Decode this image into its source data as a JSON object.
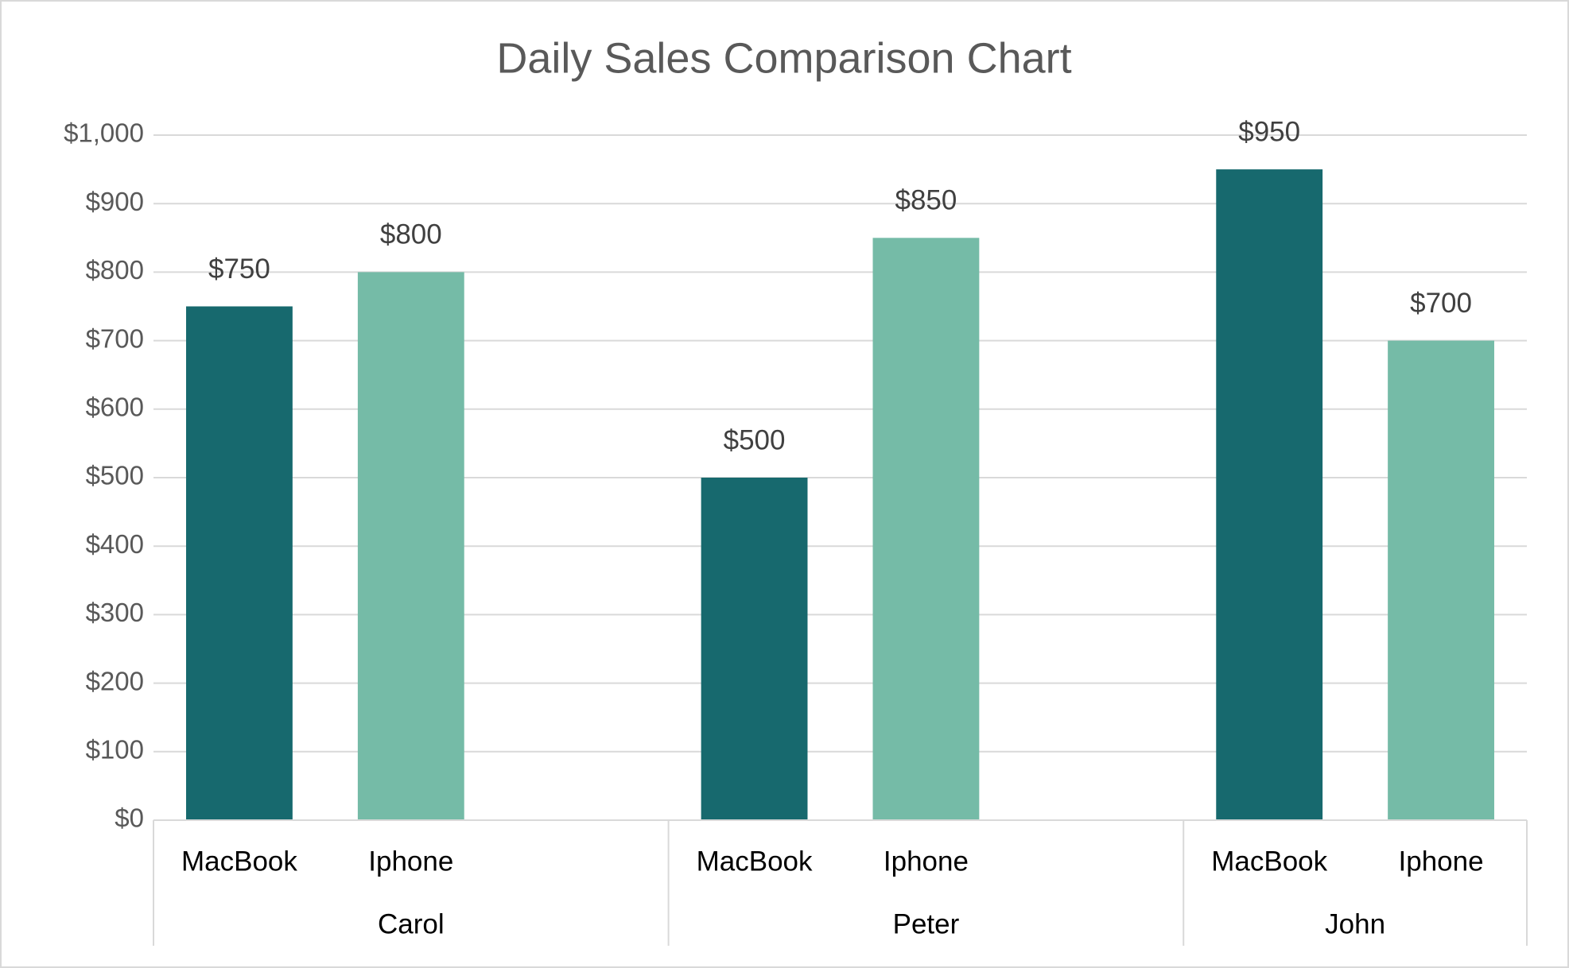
{
  "chart_data": {
    "type": "grouped-bar",
    "title": "Daily Sales Comparison Chart",
    "groups": [
      {
        "name": "Carol",
        "categories": [
          "MacBook",
          "Iphone",
          null
        ],
        "values": [
          750,
          800,
          null
        ],
        "value_labels": [
          "$750",
          "$800",
          null
        ]
      },
      {
        "name": "Peter",
        "categories": [
          "MacBook",
          "Iphone",
          null
        ],
        "values": [
          500,
          850,
          null
        ],
        "value_labels": [
          "$500",
          "$850",
          null
        ]
      },
      {
        "name": "John",
        "categories": [
          "MacBook",
          "Iphone"
        ],
        "values": [
          950,
          700
        ],
        "value_labels": [
          "$950",
          "$700"
        ]
      }
    ],
    "colors": [
      "#17696e",
      "#75bba7"
    ],
    "ylim": [
      0,
      1000
    ],
    "yticks": [
      {
        "value": 0,
        "label": "$0"
      },
      {
        "value": 100,
        "label": "$100"
      },
      {
        "value": 200,
        "label": "$200"
      },
      {
        "value": 300,
        "label": "$300"
      },
      {
        "value": 400,
        "label": "$400"
      },
      {
        "value": 500,
        "label": "$500"
      },
      {
        "value": 600,
        "label": "$600"
      },
      {
        "value": 700,
        "label": "$700"
      },
      {
        "value": 800,
        "label": "$800"
      },
      {
        "value": 900,
        "label": "$900"
      },
      {
        "value": 1000,
        "label": "$1,000"
      }
    ],
    "grid": true
  }
}
